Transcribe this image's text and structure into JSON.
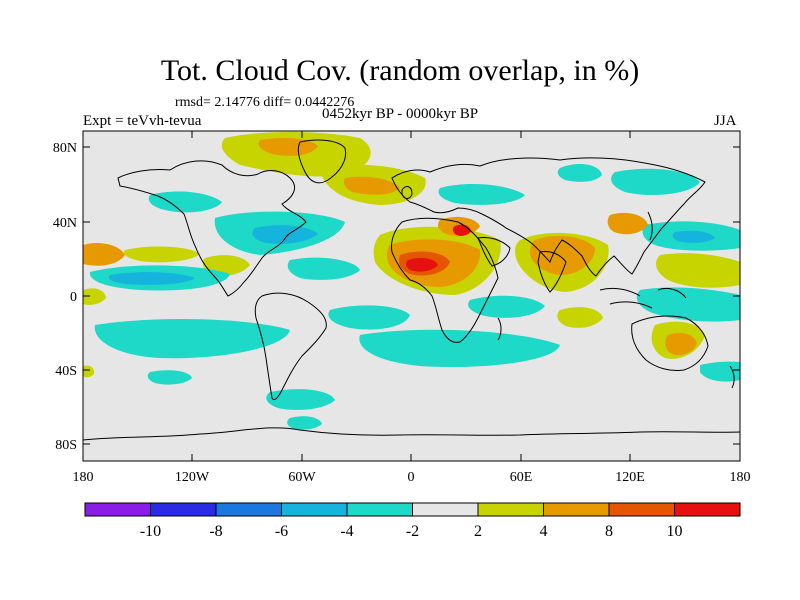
{
  "title": "Tot. Cloud Cov. (random overlap, in %)",
  "stats": "rmsd= 2.14776  diff= 0.0442276",
  "experiment": "Expt = teVvh-tevua",
  "period": "0452kyr BP - 0000kyr BP",
  "season": "JJA",
  "lat_ticks": [
    "80N",
    "40N",
    "0",
    "40S",
    "80S"
  ],
  "lon_ticks": [
    "180",
    "120W",
    "60W",
    "0",
    "60E",
    "120E",
    "180"
  ],
  "colorbar": {
    "labels": [
      "-10",
      "-8",
      "-6",
      "-4",
      "-2",
      "2",
      "4",
      "8",
      "10"
    ],
    "colors": [
      "#8b1ee6",
      "#2b2be6",
      "#1a78e0",
      "#15b4dc",
      "#1ed8c8",
      "#e6e6e6",
      "#c8d400",
      "#e69a00",
      "#e65500",
      "#e61010"
    ]
  },
  "colors": {
    "ocean_bg": "#e6e6e6",
    "neg_weak": "#1ed8c8",
    "neg_mid": "#15b4dc",
    "pos_weak": "#c8d400",
    "pos_mid": "#e69a00",
    "pos_strong": "#e65500",
    "pos_max": "#e61010"
  }
}
